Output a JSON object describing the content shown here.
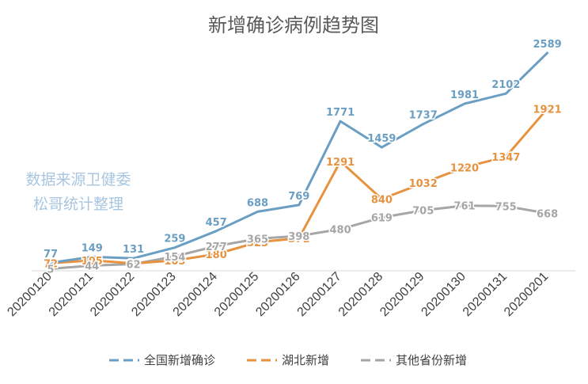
{
  "chart_data": {
    "type": "line",
    "title": "新增确诊病例趋势图",
    "xlabel": "",
    "ylabel": "",
    "categories": [
      "20200120",
      "20200121",
      "20200122",
      "20200123",
      "20200124",
      "20200125",
      "20200126",
      "20200127",
      "20200128",
      "20200129",
      "20200130",
      "20200131",
      "20200201"
    ],
    "ylim": [
      0,
      2900
    ],
    "grid": false,
    "legend_position": "bottom",
    "annotation_lines": [
      "数据来源卫健委",
      "松哥统计整理"
    ],
    "series": [
      {
        "name": "全国新增确诊",
        "color": "#6a9fc3",
        "values": [
          77,
          149,
          131,
          259,
          457,
          688,
          769,
          1771,
          1459,
          1737,
          1981,
          2102,
          2589
        ]
      },
      {
        "name": "湖北新增",
        "color": "#e6923e",
        "values": [
          72,
          105,
          69,
          105,
          180,
          323,
          371,
          1291,
          840,
          1032,
          1220,
          1347,
          1921
        ]
      },
      {
        "name": "其他省份新增",
        "color": "#a6a6a6",
        "values": [
          5,
          44,
          62,
          154,
          277,
          365,
          398,
          480,
          619,
          705,
          761,
          755,
          668
        ]
      }
    ]
  }
}
